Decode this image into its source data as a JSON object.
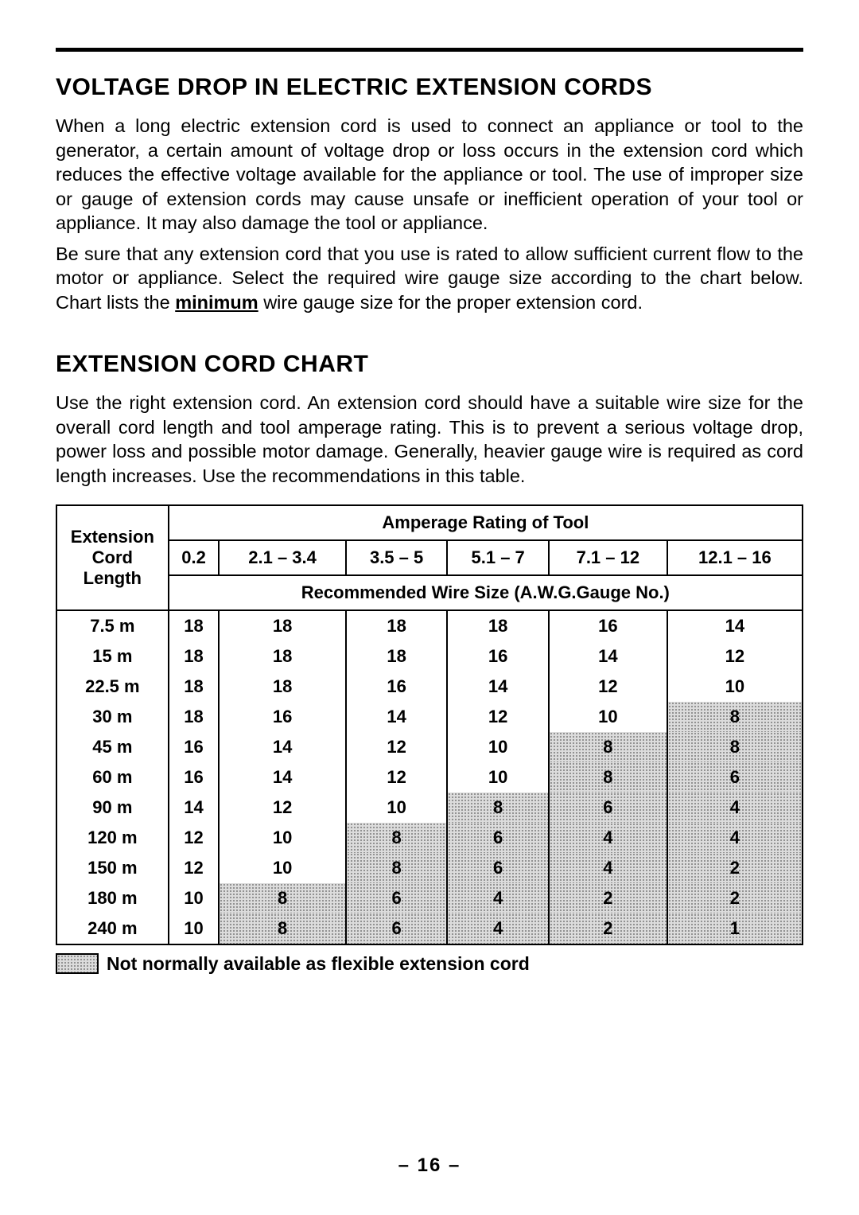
{
  "heading1": "VOLTAGE DROP IN ELECTRIC EXTENSION CORDS",
  "para1": "When a long electric extension cord is used to connect an appliance or tool to the generator, a certain amount of voltage drop or loss occurs in the extension cord which reduces the effective voltage available for the appliance or tool. The use of improper size or gauge of extension cords may cause unsafe or inefficient operation of your tool or appliance. It may also damage the tool or appliance.",
  "para2a": "Be sure that any extension cord that you use is rated to allow sufficient current flow to the motor or appliance. Select the required wire gauge size according to the chart below. Chart lists the ",
  "para2_bold": "minimum",
  "para2b": " wire gauge size for the proper extension cord.",
  "heading2": "EXTENSION CORD CHART",
  "para3": "Use the right extension cord. An extension cord should have a suitable wire size for the overall cord length and tool amperage rating. This is to prevent a serious voltage drop, power loss and possible motor damage. Generally, heavier gauge wire is required as cord length increases. Use the recommendations in this table.",
  "table": {
    "type": "table",
    "row_header_label": "Extension Cord Length",
    "spanning_header": "Amperage Rating of Tool",
    "sub_header_label": "Recommended Wire Size (A.W.G.Gauge No.)",
    "amperage_columns": [
      "0.2",
      "2.1 – 3.4",
      "3.5 – 5",
      "5.1 – 7",
      "7.1 – 12",
      "12.1 – 16"
    ],
    "lengths": [
      "7.5 m",
      "15 m",
      "22.5 m",
      "30 m",
      "45 m",
      "60 m",
      "90 m",
      "120 m",
      "150 m",
      "180 m",
      "240 m"
    ],
    "values": [
      [
        "18",
        "18",
        "18",
        "18",
        "16",
        "14"
      ],
      [
        "18",
        "18",
        "18",
        "16",
        "14",
        "12"
      ],
      [
        "18",
        "18",
        "16",
        "14",
        "12",
        "10"
      ],
      [
        "18",
        "16",
        "14",
        "12",
        "10",
        "8"
      ],
      [
        "16",
        "14",
        "12",
        "10",
        "8",
        "8"
      ],
      [
        "16",
        "14",
        "12",
        "10",
        "8",
        "6"
      ],
      [
        "14",
        "12",
        "10",
        "8",
        "6",
        "4"
      ],
      [
        "12",
        "10",
        "8",
        "6",
        "4",
        "4"
      ],
      [
        "12",
        "10",
        "8",
        "6",
        "4",
        "2"
      ],
      [
        "10",
        "8",
        "6",
        "4",
        "2",
        "2"
      ],
      [
        "10",
        "8",
        "6",
        "4",
        "2",
        "1"
      ]
    ],
    "shaded": [
      [
        false,
        false,
        false,
        false,
        false,
        false
      ],
      [
        false,
        false,
        false,
        false,
        false,
        false
      ],
      [
        false,
        false,
        false,
        false,
        false,
        false
      ],
      [
        false,
        false,
        false,
        false,
        false,
        true
      ],
      [
        false,
        false,
        false,
        false,
        true,
        true
      ],
      [
        false,
        false,
        false,
        false,
        true,
        true
      ],
      [
        false,
        false,
        false,
        true,
        true,
        true
      ],
      [
        false,
        false,
        true,
        true,
        true,
        true
      ],
      [
        false,
        false,
        true,
        true,
        true,
        true
      ],
      [
        false,
        true,
        true,
        true,
        true,
        true
      ],
      [
        false,
        true,
        true,
        true,
        true,
        true
      ]
    ],
    "border_color": "#000000",
    "shaded_bg": "#dcdcdc",
    "shaded_dot": "#7a7a7a",
    "header_fontsize": 22,
    "cell_fontsize": 22
  },
  "legend_text": "Not normally available as flexible extension cord",
  "page_number": "– 16 –",
  "colors": {
    "text": "#000000",
    "background": "#ffffff",
    "rule": "#000000"
  },
  "typography": {
    "heading_fontsize": 30,
    "heading_weight": 900,
    "body_fontsize": 23.5,
    "body_weight": 400,
    "font_family": "Arial, Helvetica, sans-serif"
  }
}
